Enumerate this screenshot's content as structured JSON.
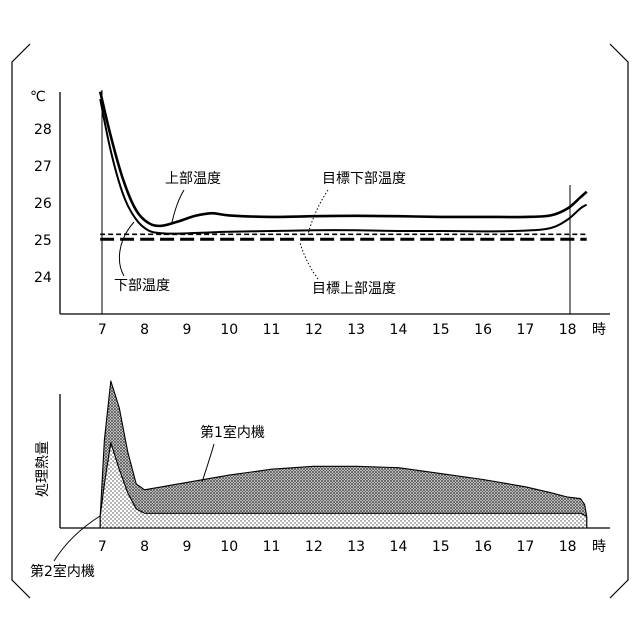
{
  "chart_data": [
    {
      "type": "line",
      "ylabel": "℃",
      "xlabel": "時",
      "x_ticks": [
        7,
        8,
        9,
        10,
        11,
        12,
        13,
        14,
        15,
        16,
        17,
        18
      ],
      "y_ticks": [
        24,
        25,
        26,
        27,
        28
      ],
      "xlim": [
        6.0,
        19.0
      ],
      "ylim": [
        23.0,
        29.1
      ],
      "series": [
        {
          "name": "上部温度",
          "points": [
            [
              6.95,
              29.0
            ],
            [
              7.2,
              27.8
            ],
            [
              7.5,
              26.6
            ],
            [
              7.8,
              25.8
            ],
            [
              8.1,
              25.45
            ],
            [
              8.4,
              25.38
            ],
            [
              8.8,
              25.5
            ],
            [
              9.2,
              25.65
            ],
            [
              9.6,
              25.72
            ],
            [
              10.0,
              25.66
            ],
            [
              11.0,
              25.62
            ],
            [
              12.0,
              25.64
            ],
            [
              13.0,
              25.65
            ],
            [
              14.0,
              25.64
            ],
            [
              15.0,
              25.62
            ],
            [
              16.0,
              25.62
            ],
            [
              17.0,
              25.62
            ],
            [
              17.6,
              25.66
            ],
            [
              18.0,
              25.85
            ],
            [
              18.3,
              26.15
            ],
            [
              18.45,
              26.3
            ]
          ]
        },
        {
          "name": "下部温度",
          "points": [
            [
              6.95,
              28.8
            ],
            [
              7.2,
              27.4
            ],
            [
              7.5,
              26.2
            ],
            [
              7.8,
              25.55
            ],
            [
              8.1,
              25.25
            ],
            [
              8.4,
              25.18
            ],
            [
              8.8,
              25.17
            ],
            [
              9.5,
              25.2
            ],
            [
              10.0,
              25.22
            ],
            [
              11.0,
              25.24
            ],
            [
              12.0,
              25.26
            ],
            [
              13.0,
              25.26
            ],
            [
              14.0,
              25.24
            ],
            [
              15.0,
              25.24
            ],
            [
              16.0,
              25.23
            ],
            [
              17.0,
              25.25
            ],
            [
              17.6,
              25.32
            ],
            [
              18.0,
              25.55
            ],
            [
              18.3,
              25.85
            ],
            [
              18.45,
              25.95
            ]
          ]
        },
        {
          "name": "目標下部温度",
          "points": [
            [
              6.95,
              25.15
            ],
            [
              18.45,
              25.15
            ]
          ]
        },
        {
          "name": "目標上部温度",
          "points": [
            [
              6.95,
              25.02
            ],
            [
              18.45,
              25.02
            ]
          ]
        }
      ],
      "annotations": [
        "上部温度",
        "下部温度",
        "目標下部温度",
        "目標上部温度"
      ]
    },
    {
      "type": "area",
      "ylabel": "処理熱量",
      "xlabel": "時",
      "x_ticks": [
        7,
        8,
        9,
        10,
        11,
        12,
        13,
        14,
        15,
        16,
        17,
        18
      ],
      "xlim": [
        6.0,
        19.0
      ],
      "ylim": [
        0,
        100
      ],
      "series": [
        {
          "name": "第1室内機",
          "points": [
            [
              6.95,
              0
            ],
            [
              6.95,
              8
            ],
            [
              7.05,
              60
            ],
            [
              7.2,
              100
            ],
            [
              7.4,
              82
            ],
            [
              7.6,
              52
            ],
            [
              7.8,
              30
            ],
            [
              8.0,
              26
            ],
            [
              9.0,
              31
            ],
            [
              10.0,
              36
            ],
            [
              11.0,
              40
            ],
            [
              12.0,
              42
            ],
            [
              13.0,
              42
            ],
            [
              14.0,
              41
            ],
            [
              15.0,
              37
            ],
            [
              16.0,
              33
            ],
            [
              17.0,
              28
            ],
            [
              17.6,
              24
            ],
            [
              18.0,
              21
            ],
            [
              18.3,
              20
            ],
            [
              18.4,
              16
            ],
            [
              18.45,
              8
            ],
            [
              18.45,
              0
            ]
          ]
        },
        {
          "name": "第2室内機",
          "points": [
            [
              6.95,
              0
            ],
            [
              6.95,
              8
            ],
            [
              7.05,
              30
            ],
            [
              7.2,
              58
            ],
            [
              7.4,
              40
            ],
            [
              7.6,
              24
            ],
            [
              7.8,
              13
            ],
            [
              8.0,
              10
            ],
            [
              18.3,
              10
            ],
            [
              18.45,
              8
            ],
            [
              18.45,
              0
            ]
          ]
        }
      ],
      "annotations": [
        "第1室内機",
        "第2室内機"
      ]
    }
  ]
}
